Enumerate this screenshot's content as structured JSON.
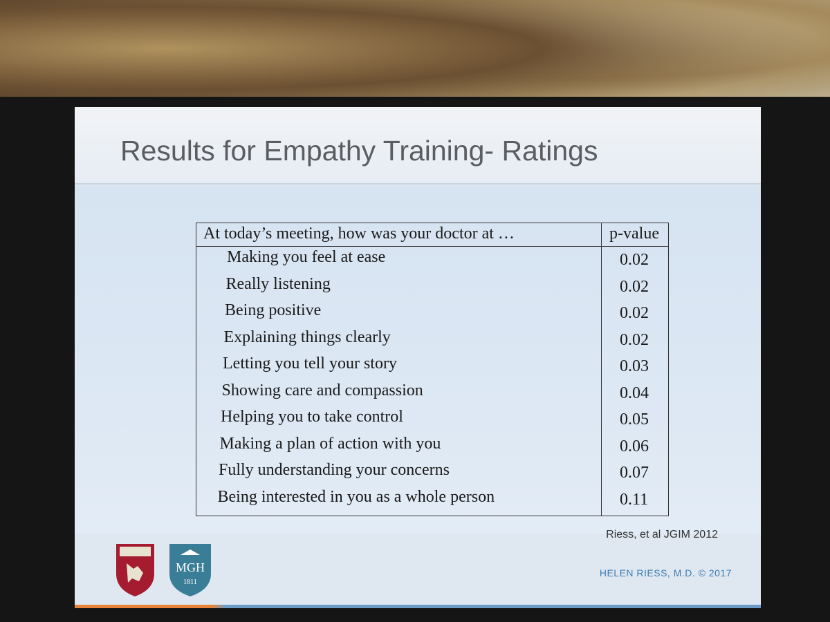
{
  "slide": {
    "title": "Results for Empathy Training- Ratings",
    "table": {
      "header": [
        "At today’s meeting, how was your doctor at …",
        "p-value"
      ],
      "rows": [
        [
          "Making you feel at ease",
          "0.02"
        ],
        [
          "Really listening",
          "0.02"
        ],
        [
          "Being positive",
          "0.02"
        ],
        [
          "Explaining things clearly",
          "0.02"
        ],
        [
          "Letting you tell your story",
          "0.03"
        ],
        [
          "Showing care and compassion",
          "0.04"
        ],
        [
          "Helping you to take control",
          "0.05"
        ],
        [
          "Making a plan of action with you",
          "0.06"
        ],
        [
          "Fully understanding your concerns",
          "0.07"
        ],
        [
          "Being interested in you as a whole person",
          "0.11"
        ]
      ]
    },
    "citation": "Riess, et al JGIM 2012",
    "logos": {
      "mgh": "MGH",
      "year": "1811"
    },
    "footer": "HELEN RIESS, M.D. © 2017"
  }
}
